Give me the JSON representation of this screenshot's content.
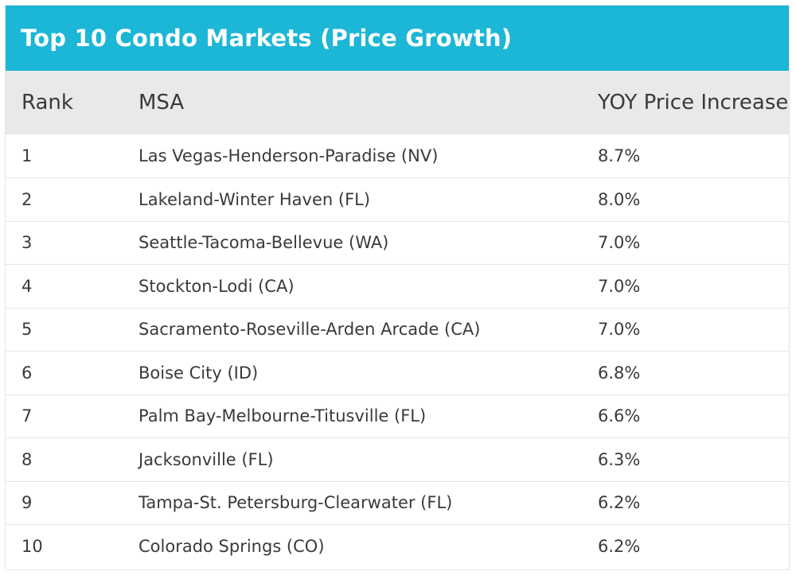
{
  "chart_data": {
    "type": "table",
    "title": "Top 10 Condo Markets (Price Growth)",
    "columns": [
      "Rank",
      "MSA",
      "YOY Price Increase"
    ],
    "rows": [
      {
        "rank": "1",
        "msa": "Las Vegas-Henderson-Paradise (NV)",
        "yoy": "8.7%"
      },
      {
        "rank": "2",
        "msa": "Lakeland-Winter Haven (FL)",
        "yoy": "8.0%"
      },
      {
        "rank": "3",
        "msa": "Seattle-Tacoma-Bellevue (WA)",
        "yoy": "7.0%"
      },
      {
        "rank": "4",
        "msa": "Stockton-Lodi (CA)",
        "yoy": "7.0%"
      },
      {
        "rank": "5",
        "msa": "Sacramento-Roseville-Arden Arcade (CA)",
        "yoy": "7.0%"
      },
      {
        "rank": "6",
        "msa": "Boise City (ID)",
        "yoy": "6.8%"
      },
      {
        "rank": "7",
        "msa": "Palm Bay-Melbourne-Titusville (FL)",
        "yoy": "6.6%"
      },
      {
        "rank": "8",
        "msa": "Jacksonville (FL)",
        "yoy": "6.3%"
      },
      {
        "rank": "9",
        "msa": "Tampa-St. Petersburg-Clearwater (FL)",
        "yoy": "6.2%"
      },
      {
        "rank": "10",
        "msa": "Colorado Springs (CO)",
        "yoy": "6.2%"
      }
    ]
  },
  "colors": {
    "title_bar": "#1cb6d6",
    "title_text": "#ffffff",
    "header_bg": "#e9e9e9",
    "row_divider": "#e6e6e6"
  }
}
